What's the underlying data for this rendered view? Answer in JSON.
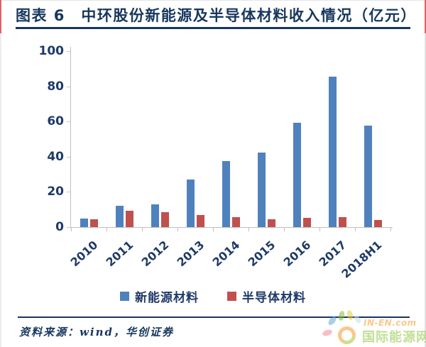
{
  "header": {
    "title": "图表 6　中环股份新能源及半导体材料收入情况（亿元）"
  },
  "chart_data": {
    "type": "bar",
    "title": "中环股份新能源及半导体材料收入情况（亿元）",
    "categories": [
      "2010",
      "2011",
      "2012",
      "2013",
      "2014",
      "2015",
      "2016",
      "2017",
      "2018H1"
    ],
    "series": [
      {
        "name": "新能源材料",
        "color": "#4f81bd",
        "values": [
          5.0,
          11.9,
          13.1,
          26.9,
          37.6,
          42.5,
          59.3,
          85.6,
          57.6
        ]
      },
      {
        "name": "半导体材料",
        "color": "#c0504d",
        "values": [
          4.4,
          9.2,
          8.5,
          7.0,
          5.8,
          4.6,
          5.2,
          5.6,
          4.2
        ]
      }
    ],
    "xlabel": "",
    "ylabel": "",
    "ylim": [
      0,
      100
    ],
    "yticks": [
      0,
      20,
      40,
      60,
      80,
      100
    ],
    "grid": false,
    "legend_position": "bottom"
  },
  "footer": {
    "source": "资料来源：wind，华创证券"
  },
  "watermark": {
    "brand": "IN-EN.com",
    "name": "国际能源网"
  },
  "colors": {
    "title_navy": "#17375e",
    "axis_label_navy": "#1f3a68",
    "bar_blue": "#4f81bd",
    "bar_red": "#c0504d",
    "accent_red_border": "#e06262",
    "axis_gray": "#bfbfbf",
    "watermark_orange": "#f59c2f",
    "watermark_green": "#8dc63f"
  }
}
